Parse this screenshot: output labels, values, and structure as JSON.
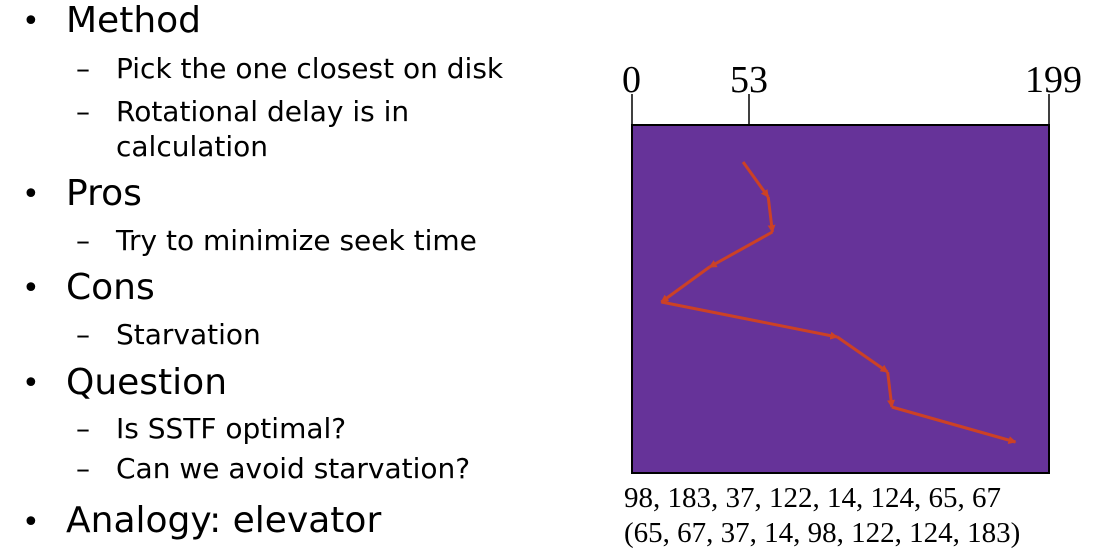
{
  "bullets": {
    "method": "Method",
    "method_sub1": "Pick the one closest on disk",
    "method_sub2_line1": "Rotational delay is in",
    "method_sub2_line2": "calculation",
    "pros": "Pros",
    "pros_sub1": "Try to minimize seek time",
    "cons": "Cons",
    "cons_sub1": "Starvation",
    "question": "Question",
    "question_sub1": "Is SSTF optimal?",
    "question_sub2": "Can we avoid starvation?",
    "analogy": "Analogy: elevator",
    "bullet_char": "•",
    "dash_char": "–"
  },
  "diagram": {
    "axis_labels": [
      "0",
      "53",
      "199"
    ],
    "request_queue": "98, 183, 37, 122, 14, 124, 65, 67",
    "service_order": "(65, 67, 37, 14, 98, 122, 124, 183)",
    "fill_color": "#663399",
    "path_color": "#cc4125",
    "path": [
      53,
      65,
      67,
      37,
      14,
      98,
      122,
      124,
      183
    ]
  }
}
